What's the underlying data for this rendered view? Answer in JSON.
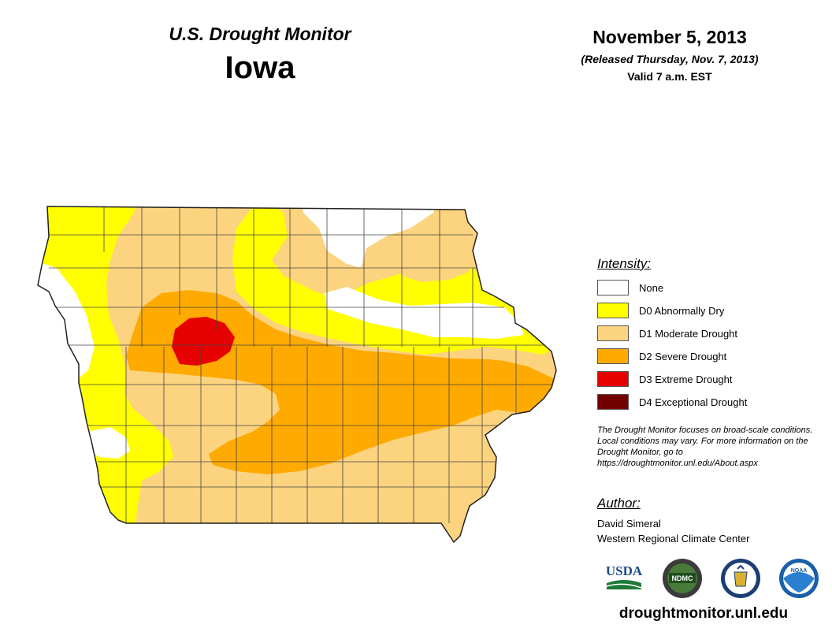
{
  "header": {
    "title": "U.S. Drought Monitor",
    "state": "Iowa",
    "date": "November 5, 2013",
    "released": "(Released Thursday, Nov. 7, 2013)",
    "valid": "Valid 7 a.m. EST"
  },
  "legend": {
    "title": "Intensity:",
    "items": [
      {
        "label": "None",
        "color": "#ffffff"
      },
      {
        "label": "D0 Abnormally Dry",
        "color": "#ffff00"
      },
      {
        "label": "D1 Moderate Drought",
        "color": "#fcd37f"
      },
      {
        "label": "D2 Severe Drought",
        "color": "#ffaa00"
      },
      {
        "label": "D3 Extreme Drought",
        "color": "#e60000"
      },
      {
        "label": "D4 Exceptional Drought",
        "color": "#730000"
      }
    ]
  },
  "note": "The Drought Monitor focuses on broad-scale conditions. Local conditions may vary. For more information on the Drought Monitor, go to https://droughtmonitor.unl.edu/About.aspx",
  "author": {
    "title": "Author:",
    "name": "David Simeral",
    "org": "Western Regional Climate Center"
  },
  "logos": [
    {
      "name": "usda-logo",
      "text": "USDA"
    },
    {
      "name": "ndmc-logo",
      "text": "NDMC"
    },
    {
      "name": "doc-logo",
      "text": ""
    },
    {
      "name": "noaa-logo",
      "text": "NOAA"
    }
  ],
  "website": "droughtmonitor.unl.edu"
}
